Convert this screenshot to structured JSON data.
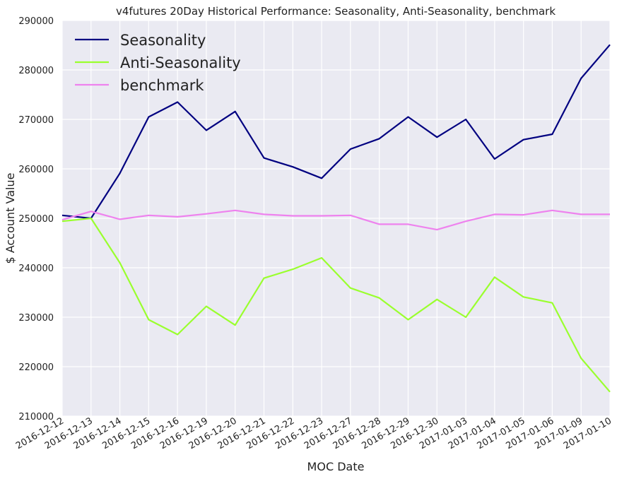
{
  "chart_data": {
    "type": "line",
    "title": "v4futures 20Day Historical Performance: Seasonality, Anti-Seasonality, benchmark",
    "xlabel": "MOC Date",
    "ylabel": "$ Account Value",
    "ylim": [
      210000,
      290000
    ],
    "yticks": [
      "210000",
      "220000",
      "230000",
      "240000",
      "250000",
      "260000",
      "270000",
      "280000",
      "290000"
    ],
    "categories": [
      "2016-12-12",
      "2016-12-13",
      "2016-12-14",
      "2016-12-15",
      "2016-12-16",
      "2016-12-19",
      "2016-12-20",
      "2016-12-21",
      "2016-12-22",
      "2016-12-23",
      "2016-12-27",
      "2016-12-28",
      "2016-12-29",
      "2016-12-30",
      "2017-01-03",
      "2017-01-04",
      "2017-01-05",
      "2017-01-06",
      "2017-01-09",
      "2017-01-10"
    ],
    "grid": true,
    "legend_position": "top-left",
    "series": [
      {
        "name": "Seasonality",
        "color": "#000080",
        "values": [
          250600,
          250000,
          259100,
          270500,
          273500,
          267800,
          271600,
          262200,
          260400,
          258100,
          264000,
          266100,
          270500,
          266400,
          270000,
          262000,
          265900,
          267000,
          278300,
          285100
        ]
      },
      {
        "name": "Anti-Seasonality",
        "color": "#9aff2e",
        "values": [
          249400,
          250000,
          241000,
          229500,
          226500,
          232200,
          228400,
          237900,
          239700,
          242000,
          235900,
          233900,
          229500,
          233600,
          230000,
          238100,
          234100,
          232900,
          221700,
          214900
        ]
      },
      {
        "name": "benchmark",
        "color": "#ee82ee",
        "values": [
          249700,
          251400,
          249800,
          250600,
          250300,
          250900,
          251600,
          250800,
          250500,
          250500,
          250600,
          248800,
          248800,
          247700,
          249400,
          250800,
          250700,
          251600,
          250800,
          250800
        ]
      }
    ]
  }
}
